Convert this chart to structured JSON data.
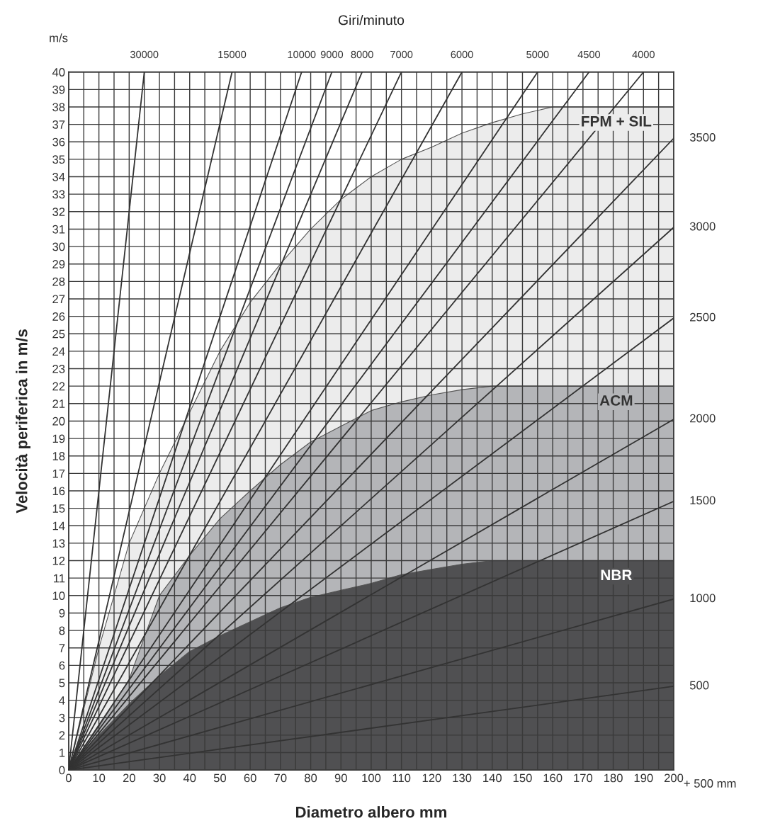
{
  "chart_data": {
    "type": "line",
    "title": "Giri/minuto",
    "xlabel": "Diametro albero mm",
    "ylabel": "Velocità periferica in m/s",
    "annotations": [
      "m/s",
      "+ 500 mm"
    ],
    "xlim": [
      0,
      200
    ],
    "ylim": [
      0,
      40
    ],
    "xticks": [
      0,
      {
        "value": 5,
        "label": null
      },
      10,
      {
        "value": 15,
        "label": null
      },
      20,
      {
        "value": 25,
        "label": null
      },
      30,
      {
        "value": 35,
        "label": null
      },
      40,
      {
        "value": 45,
        "label": null
      },
      50,
      {
        "value": 55,
        "label": null
      },
      60,
      {
        "value": 65,
        "label": null
      },
      70,
      {
        "value": 75,
        "label": null
      },
      80,
      {
        "value": 85,
        "label": null
      },
      90,
      {
        "value": 95,
        "label": null
      },
      100,
      {
        "value": 105,
        "label": null
      },
      110,
      {
        "value": 115,
        "label": null
      },
      120,
      {
        "value": 125,
        "label": null
      },
      130,
      {
        "value": 135,
        "label": null
      },
      140,
      {
        "value": 145,
        "label": null
      },
      150,
      {
        "value": 155,
        "label": null
      },
      160,
      {
        "value": 165,
        "label": null
      },
      170,
      {
        "value": 175,
        "label": null
      },
      180,
      {
        "value": 185,
        "label": null
      },
      190,
      {
        "value": 195,
        "label": null
      },
      200
    ],
    "yticks": [
      0,
      1,
      2,
      3,
      4,
      5,
      6,
      7,
      8,
      9,
      10,
      11,
      12,
      13,
      14,
      15,
      16,
      17,
      18,
      19,
      20,
      21,
      22,
      23,
      24,
      25,
      26,
      27,
      28,
      29,
      30,
      31,
      32,
      33,
      34,
      35,
      36,
      37,
      38,
      39,
      40
    ],
    "grid": true,
    "legend": false,
    "series": [
      {
        "type": "area",
        "name": "FPM + SIL",
        "color": "#ececec",
        "x": [
          0,
          10,
          20,
          30,
          40,
          50,
          60,
          70,
          80,
          90,
          100,
          110,
          120,
          130,
          140,
          150,
          160,
          200
        ],
        "values": [
          0,
          7,
          13,
          17,
          20.5,
          24,
          26.8,
          29,
          31,
          32.7,
          34,
          35,
          35.7,
          36.5,
          37.1,
          37.6,
          38,
          38
        ]
      },
      {
        "type": "area",
        "name": "ACM",
        "color": "#b4b5b8",
        "x": [
          0,
          10,
          20,
          30,
          40,
          50,
          60,
          70,
          80,
          90,
          100,
          110,
          120,
          130,
          140,
          150,
          200
        ],
        "values": [
          0,
          2.5,
          5.2,
          10,
          12.3,
          14.4,
          16,
          17.5,
          18.8,
          19.7,
          20.6,
          21.1,
          21.5,
          21.8,
          22,
          22,
          22
        ]
      },
      {
        "type": "area",
        "name": "NBR",
        "color": "#505052",
        "x": [
          0,
          10,
          20,
          30,
          40,
          50,
          60,
          70,
          80,
          90,
          100,
          110,
          120,
          130,
          140,
          150,
          200
        ],
        "values": [
          0,
          2,
          3.8,
          5.4,
          6.8,
          7.7,
          8.5,
          9.3,
          9.9,
          10.3,
          10.7,
          11.2,
          11.5,
          11.8,
          12,
          12,
          12
        ]
      },
      {
        "name": "30000",
        "color": "#333333",
        "x": [
          0,
          25
        ],
        "values": [
          0,
          40
        ]
      },
      {
        "name": "15000",
        "color": "#333333",
        "x": [
          0,
          54
        ],
        "values": [
          0,
          40
        ]
      },
      {
        "name": "10000",
        "color": "#333333",
        "x": [
          0,
          77
        ],
        "values": [
          0,
          40
        ]
      },
      {
        "name": "9000",
        "color": "#333333",
        "x": [
          0,
          87
        ],
        "values": [
          0,
          40
        ]
      },
      {
        "name": "8000",
        "color": "#333333",
        "x": [
          0,
          97
        ],
        "values": [
          0,
          40
        ]
      },
      {
        "name": "7000",
        "color": "#333333",
        "x": [
          0,
          110
        ],
        "values": [
          0,
          40
        ]
      },
      {
        "name": "6000",
        "color": "#333333",
        "x": [
          0,
          130
        ],
        "values": [
          0,
          40
        ]
      },
      {
        "name": "5000",
        "color": "#333333",
        "x": [
          0,
          155
        ],
        "values": [
          0,
          40
        ]
      },
      {
        "name": "4500",
        "color": "#333333",
        "x": [
          0,
          172
        ],
        "values": [
          0,
          40
        ]
      },
      {
        "name": "4000",
        "color": "#333333",
        "x": [
          0,
          190
        ],
        "values": [
          0,
          40
        ]
      },
      {
        "name": "3500",
        "color": "#333333",
        "x": [
          0,
          200
        ],
        "values": [
          0,
          36.2
        ]
      },
      {
        "name": "3000",
        "color": "#333333",
        "x": [
          0,
          200
        ],
        "values": [
          0,
          31.1
        ]
      },
      {
        "name": "2500",
        "color": "#333333",
        "x": [
          0,
          200
        ],
        "values": [
          0,
          25.9
        ]
      },
      {
        "name": "2000",
        "color": "#333333",
        "x": [
          0,
          200
        ],
        "values": [
          0,
          20.1
        ]
      },
      {
        "name": "1500",
        "color": "#333333",
        "x": [
          0,
          200
        ],
        "values": [
          0,
          15.4
        ]
      },
      {
        "name": "1000",
        "color": "#333333",
        "x": [
          0,
          200
        ],
        "values": [
          0,
          9.8
        ]
      },
      {
        "name": "500",
        "color": "#333333",
        "x": [
          0,
          200
        ],
        "values": [
          0,
          4.8
        ]
      }
    ]
  }
}
